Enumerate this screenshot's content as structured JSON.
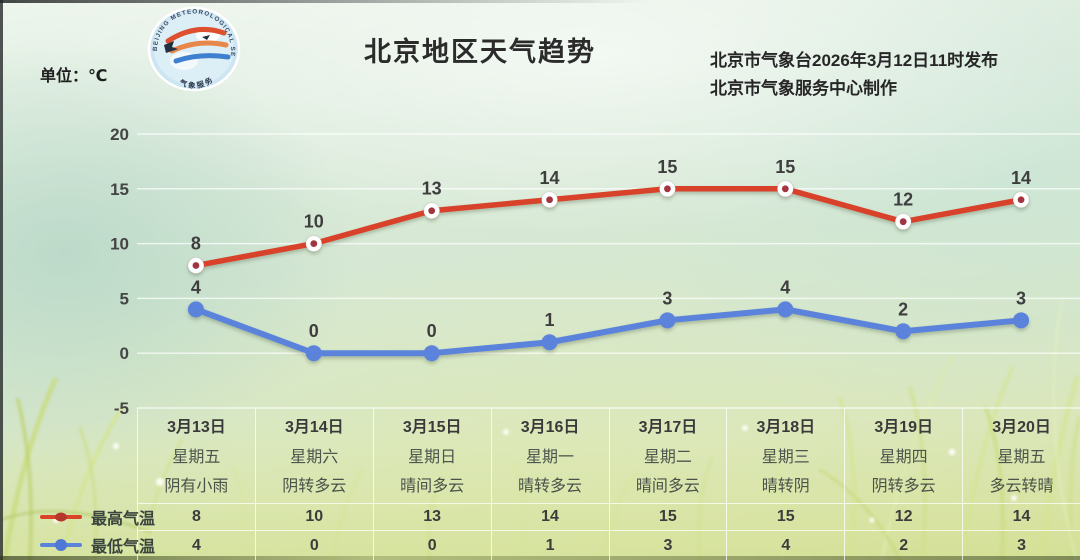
{
  "header": {
    "unit_label": "单位：℃",
    "title": "北京地区天气趋势",
    "issued": "北京市气象台2026年3月12日11时发布",
    "produced": "北京市气象服务中心制作"
  },
  "logo": {
    "ring_text": "BEIJING METEOROLOGICAL SERVICE",
    "bottom_text": "气象服务"
  },
  "legend": {
    "max_label": "最高气温",
    "min_label": "最低气温"
  },
  "days": [
    {
      "date": "3月13日",
      "weekday": "星期五",
      "weather": "阴有小雨",
      "high": "8",
      "low": "4"
    },
    {
      "date": "3月14日",
      "weekday": "星期六",
      "weather": "阴转多云",
      "high": "10",
      "low": "0"
    },
    {
      "date": "3月15日",
      "weekday": "星期日",
      "weather": "晴间多云",
      "high": "13",
      "low": "0"
    },
    {
      "date": "3月16日",
      "weekday": "星期一",
      "weather": "晴转多云",
      "high": "14",
      "low": "1"
    },
    {
      "date": "3月17日",
      "weekday": "星期二",
      "weather": "晴间多云",
      "high": "15",
      "low": "3"
    },
    {
      "date": "3月18日",
      "weekday": "星期三",
      "weather": "晴转阴",
      "high": "15",
      "low": "4"
    },
    {
      "date": "3月19日",
      "weekday": "星期四",
      "weather": "阴转多云",
      "high": "12",
      "low": "2"
    },
    {
      "date": "3月20日",
      "weekday": "星期五",
      "weather": "多云转晴",
      "high": "14",
      "low": "3"
    }
  ],
  "chart_data": {
    "type": "line",
    "title": "北京地区天气趋势",
    "unit": "℃",
    "categories": [
      "3月13日",
      "3月14日",
      "3月15日",
      "3月16日",
      "3月17日",
      "3月18日",
      "3月19日",
      "3月20日"
    ],
    "series": [
      {
        "name": "最高气温",
        "color": "#d8432a",
        "marker": "open-circle",
        "marker_center": "#a23642",
        "values": [
          8,
          10,
          13,
          14,
          15,
          15,
          12,
          14
        ]
      },
      {
        "name": "最低气温",
        "color": "#5b83db",
        "marker": "filled-circle",
        "marker_center": "#5b83db",
        "values": [
          4,
          0,
          0,
          1,
          3,
          4,
          2,
          3
        ]
      }
    ],
    "ylim": [
      -5,
      20
    ],
    "yticks": [
      20,
      15,
      10,
      5,
      0,
      -5
    ],
    "grid": "horizontal",
    "gridline_color": "rgba(255,255,255,0.7)",
    "label_color": "#3e3e3e",
    "legend_position": "bottom-left"
  }
}
